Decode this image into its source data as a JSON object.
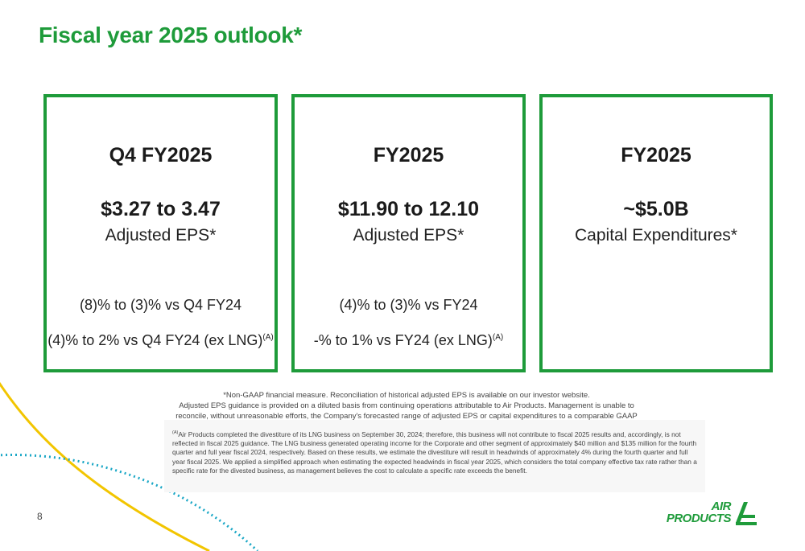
{
  "slide": {
    "title": "Fiscal year 2025 outlook*",
    "page_number": "8"
  },
  "cards": [
    {
      "period": "Q4 FY2025",
      "value": "$3.27 to 3.47",
      "metric": "Adjusted EPS*",
      "comparison_1": "(8)% to (3)% vs Q4 FY24",
      "comparison_2": "(4)% to 2% vs Q4 FY24 (ex LNG)",
      "comparison_2_note": "(A)"
    },
    {
      "period": "FY2025",
      "value": "$11.90 to 12.10",
      "metric": "Adjusted EPS*",
      "comparison_1": "(4)% to (3)% vs FY24",
      "comparison_2": "-% to 1% vs FY24 (ex LNG)",
      "comparison_2_note": "(A)"
    },
    {
      "period": "FY2025",
      "value": "~$5.0B",
      "metric": "Capital Expenditures*"
    }
  ],
  "notes": {
    "non_gaap_1": "*Non-GAAP financial measure. Reconciliation of historical adjusted EPS is available on our investor website.",
    "non_gaap_2": "Adjusted EPS guidance is provided on a diluted basis from continuing operations attributable to Air Products. Management is unable to reconcile, without unreasonable efforts, the Company's forecasted range of adjusted EPS or capital expenditures to a comparable GAAP range.",
    "footnote_marker": "(A)",
    "footnote_text": "Air Products completed the divestiture of its LNG business on September 30, 2024; therefore, this business will not contribute to fiscal 2025 results and, accordingly, is not reflected in fiscal 2025 guidance. The LNG business generated operating income for the Corporate and other segment of approximately $40 million and $135 million for the fourth quarter and full year fiscal 2024, respectively. Based on these results, we estimate the divestiture will result in headwinds of approximately 4% during the fourth quarter and full year fiscal 2025. We applied a simplified approach when estimating the expected headwinds in fiscal year 2025, which considers the total company effective tax rate rather than a specific rate for the divested business, as management believes the cost to calculate a specific rate exceeds the benefit."
  },
  "logo": {
    "line1": "AIR",
    "line2": "PRODUCTS"
  },
  "colors": {
    "brand_green": "#1e9b3a",
    "accent_yellow": "#f2c500",
    "accent_blue": "#1aa7c6"
  }
}
